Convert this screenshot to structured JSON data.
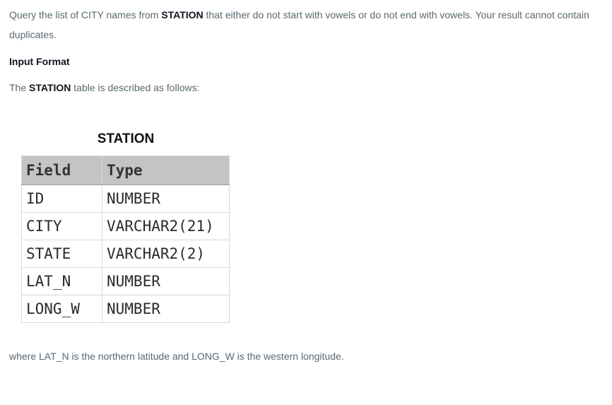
{
  "intro": {
    "before_station": "Query the list of CITY names from ",
    "station": "STATION",
    "after_station": " that either do not start with vowels or do not end with vowels. Your result cannot contain duplicates."
  },
  "input_format_heading": "Input Format",
  "table_desc": {
    "before": "The ",
    "station": "STATION",
    "after": " table is described as follows:"
  },
  "figure": {
    "title": "STATION",
    "headers": [
      "Field",
      "Type"
    ],
    "rows": [
      [
        "ID",
        "NUMBER"
      ],
      [
        "CITY",
        "VARCHAR2(21)"
      ],
      [
        "STATE",
        "VARCHAR2(2)"
      ],
      [
        "LAT_N",
        "NUMBER"
      ],
      [
        "LONG_W",
        "NUMBER"
      ]
    ]
  },
  "footer_text": "where LAT_N is the northern latitude and LONG_W is the western longitude."
}
